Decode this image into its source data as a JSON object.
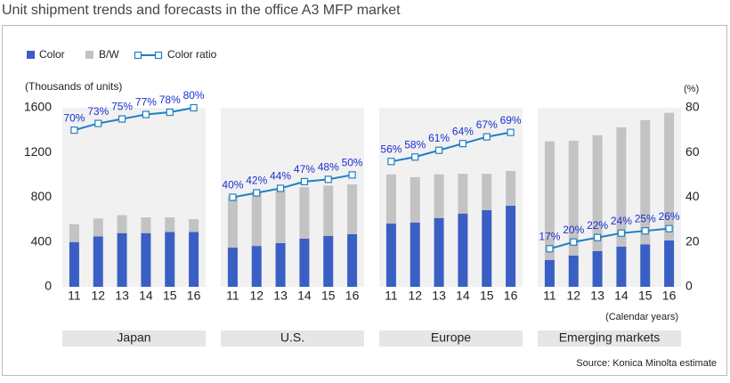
{
  "chart_data": {
    "type": "bar",
    "title": "Unit shipment trends and forecasts in the office A3 MFP market",
    "ylabel": "(Thousands of units)",
    "y2label": "(%)",
    "xlabel": "(Calendar years)",
    "source": "Source: Konica Minolta estimate",
    "ylim": [
      0,
      1600
    ],
    "yticks": [
      0,
      400,
      800,
      1200,
      1600
    ],
    "y2lim": [
      0,
      80
    ],
    "y2ticks": [
      0,
      20,
      40,
      60,
      80
    ],
    "categories": [
      "11",
      "12",
      "13",
      "14",
      "15",
      "16"
    ],
    "panels": [
      {
        "name": "Japan",
        "series": [
          {
            "name": "Color",
            "color": "#3a5fc4",
            "values": [
              400,
              450,
              480,
              480,
              490,
              490
            ]
          },
          {
            "name": "B/W",
            "color": "#c3c3c3",
            "values": [
              160,
              160,
              160,
              140,
              130,
              115
            ]
          },
          {
            "name": "Color ratio",
            "color": "#1f7fc4",
            "axis": "y2",
            "values": [
              70,
              73,
              75,
              77,
              78,
              80
            ],
            "value_labels": [
              "70%",
              "73%",
              "75%",
              "77%",
              "78%",
              "80%"
            ]
          }
        ]
      },
      {
        "name": "U.S.",
        "series": [
          {
            "name": "Color",
            "color": "#3a5fc4",
            "values": [
              350,
              365,
              390,
              430,
              455,
              470
            ]
          },
          {
            "name": "B/W",
            "color": "#c3c3c3",
            "values": [
              460,
              485,
              480,
              460,
              450,
              445
            ]
          },
          {
            "name": "Color ratio",
            "color": "#1f7fc4",
            "axis": "y2",
            "values": [
              40,
              42,
              44,
              47,
              48,
              50
            ],
            "value_labels": [
              "40%",
              "42%",
              "44%",
              "47%",
              "48%",
              "50%"
            ]
          }
        ]
      },
      {
        "name": "Europe",
        "series": [
          {
            "name": "Color",
            "color": "#3a5fc4",
            "values": [
              565,
              575,
              615,
              655,
              685,
              725
            ]
          },
          {
            "name": "B/W",
            "color": "#c3c3c3",
            "values": [
              440,
              405,
              390,
              355,
              325,
              310
            ]
          },
          {
            "name": "Color ratio",
            "color": "#1f7fc4",
            "axis": "y2",
            "values": [
              56,
              58,
              61,
              64,
              67,
              69
            ],
            "value_labels": [
              "56%",
              "58%",
              "61%",
              "64%",
              "67%",
              "69%"
            ]
          }
        ]
      },
      {
        "name": "Emerging markets",
        "series": [
          {
            "name": "Color",
            "color": "#3a5fc4",
            "values": [
              240,
              280,
              320,
              360,
              380,
              415
            ]
          },
          {
            "name": "B/W",
            "color": "#c3c3c3",
            "values": [
              1060,
              1025,
              1035,
              1065,
              1110,
              1140
            ]
          },
          {
            "name": "Color ratio",
            "color": "#1f7fc4",
            "axis": "y2",
            "values": [
              17,
              20,
              22,
              24,
              25,
              26
            ],
            "value_labels": [
              "17%",
              "20%",
              "22%",
              "24%",
              "25%",
              "26%"
            ]
          }
        ]
      }
    ]
  }
}
